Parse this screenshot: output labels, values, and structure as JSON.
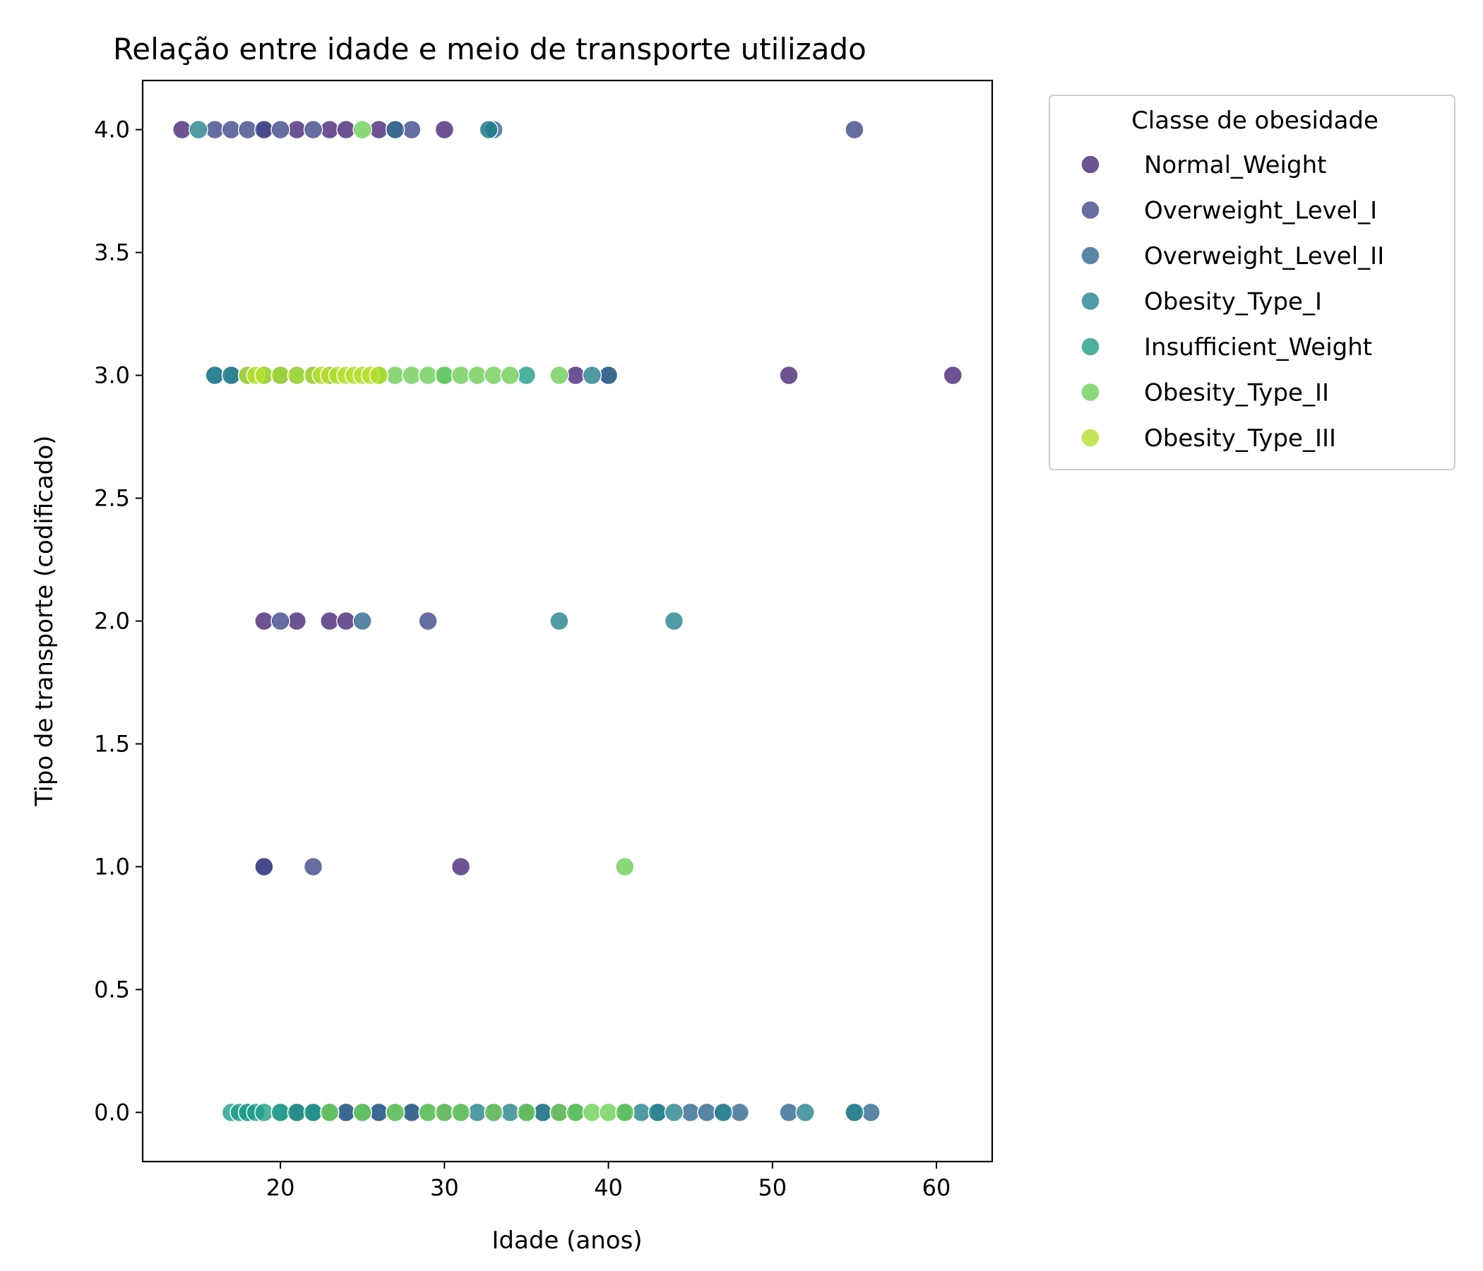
{
  "chart_data": {
    "type": "scatter",
    "title": "Relação entre idade e meio de transporte utilizado",
    "xlabel": "Idade (anos)",
    "ylabel": "Tipo de transporte (codificado)",
    "xlim": [
      11.6,
      63.4
    ],
    "ylim": [
      -0.2,
      4.2
    ],
    "xticks": [
      20,
      30,
      40,
      50,
      60
    ],
    "yticks": [
      0.0,
      0.5,
      1.0,
      1.5,
      2.0,
      2.5,
      3.0,
      3.5,
      4.0
    ],
    "xtick_labels": [
      "20",
      "30",
      "40",
      "50",
      "60"
    ],
    "ytick_labels": [
      "0.0",
      "0.5",
      "1.0",
      "1.5",
      "2.0",
      "2.5",
      "3.0",
      "3.5",
      "4.0"
    ],
    "grid": false,
    "legend": {
      "title": "Classe de obesidade",
      "placement": "outside-upper-right"
    },
    "series": [
      {
        "name": "Normal_Weight",
        "color": "#482878",
        "points": [
          [
            14,
            4
          ],
          [
            19,
            4
          ],
          [
            21,
            4
          ],
          [
            23,
            4
          ],
          [
            24,
            4
          ],
          [
            26,
            4
          ],
          [
            30,
            4
          ],
          [
            19,
            2
          ],
          [
            21,
            2
          ],
          [
            23,
            2
          ],
          [
            24,
            2
          ],
          [
            19,
            1
          ],
          [
            31,
            1
          ],
          [
            51,
            3
          ],
          [
            61,
            3
          ],
          [
            38,
            3
          ],
          [
            21,
            0
          ],
          [
            23,
            0
          ],
          [
            25,
            0
          ],
          [
            22,
            0
          ]
        ]
      },
      {
        "name": "Overweight_Level_I",
        "color": "#3e4989",
        "points": [
          [
            16,
            4
          ],
          [
            17,
            4
          ],
          [
            18,
            4
          ],
          [
            19,
            4
          ],
          [
            20,
            4
          ],
          [
            22,
            4
          ],
          [
            27,
            4
          ],
          [
            28,
            4
          ],
          [
            55,
            4
          ],
          [
            20,
            2
          ],
          [
            29,
            2
          ],
          [
            19,
            1
          ],
          [
            22,
            1
          ],
          [
            21,
            0
          ],
          [
            22,
            0
          ],
          [
            24,
            0
          ],
          [
            26,
            0
          ],
          [
            28,
            0
          ],
          [
            30,
            0
          ],
          [
            33,
            0
          ],
          [
            35,
            0
          ],
          [
            36,
            0
          ],
          [
            37,
            0
          ],
          [
            40,
            3
          ]
        ]
      },
      {
        "name": "Overweight_Level_II",
        "color": "#31688e",
        "points": [
          [
            27,
            4
          ],
          [
            32.8,
            4
          ],
          [
            33,
            4
          ],
          [
            25,
            2
          ],
          [
            40,
            3
          ],
          [
            16,
            3
          ],
          [
            17,
            3
          ],
          [
            22,
            0
          ],
          [
            24,
            0
          ],
          [
            26,
            0
          ],
          [
            28,
            0
          ],
          [
            31,
            0
          ],
          [
            35,
            0
          ],
          [
            38,
            0
          ],
          [
            41,
            0
          ],
          [
            43,
            0
          ],
          [
            45,
            0
          ],
          [
            46,
            0
          ],
          [
            47,
            0
          ],
          [
            48,
            0
          ],
          [
            51,
            0
          ],
          [
            55,
            0
          ],
          [
            56,
            0
          ]
        ]
      },
      {
        "name": "Obesity_Type_I",
        "color": "#26828e",
        "points": [
          [
            15,
            4
          ],
          [
            32.7,
            4
          ],
          [
            37,
            2
          ],
          [
            44,
            2
          ],
          [
            16,
            3
          ],
          [
            17,
            3
          ],
          [
            18,
            3
          ],
          [
            20,
            3
          ],
          [
            22,
            3
          ],
          [
            39,
            3
          ],
          [
            18,
            0
          ],
          [
            20,
            0
          ],
          [
            23,
            0
          ],
          [
            25,
            0
          ],
          [
            27,
            0
          ],
          [
            29,
            0
          ],
          [
            32,
            0
          ],
          [
            34,
            0
          ],
          [
            36,
            0
          ],
          [
            38,
            0
          ],
          [
            41,
            0
          ],
          [
            42,
            0
          ],
          [
            43,
            0
          ],
          [
            44,
            0
          ],
          [
            47,
            0
          ],
          [
            52,
            0
          ],
          [
            55,
            0
          ]
        ]
      },
      {
        "name": "Insufficient_Weight",
        "color": "#1f9e89",
        "points": [
          [
            17,
            0
          ],
          [
            17.5,
            0
          ],
          [
            18,
            0
          ],
          [
            18.5,
            0
          ],
          [
            19,
            0
          ],
          [
            20,
            0
          ],
          [
            21,
            0
          ],
          [
            22,
            0
          ],
          [
            19,
            3
          ],
          [
            20,
            3
          ],
          [
            21,
            3
          ],
          [
            23,
            3
          ],
          [
            26,
            3
          ],
          [
            30,
            3
          ],
          [
            35,
            3
          ]
        ]
      },
      {
        "name": "Obesity_Type_II",
        "color": "#6ece58",
        "points": [
          [
            25,
            4
          ],
          [
            26,
            3
          ],
          [
            27,
            3
          ],
          [
            28,
            3
          ],
          [
            29,
            3
          ],
          [
            30,
            3
          ],
          [
            31,
            3
          ],
          [
            32,
            3
          ],
          [
            33,
            3
          ],
          [
            34,
            3
          ],
          [
            37,
            3
          ],
          [
            41,
            1
          ],
          [
            23,
            0
          ],
          [
            25,
            0
          ],
          [
            27,
            0
          ],
          [
            29,
            0
          ],
          [
            30,
            0
          ],
          [
            31,
            0
          ],
          [
            33,
            0
          ],
          [
            35,
            0
          ],
          [
            37,
            0
          ],
          [
            38,
            0
          ],
          [
            39,
            0
          ],
          [
            40,
            0
          ],
          [
            41,
            0
          ]
        ]
      },
      {
        "name": "Obesity_Type_III",
        "color": "#b5de2b",
        "points": [
          [
            18,
            3
          ],
          [
            18.5,
            3
          ],
          [
            19,
            3
          ],
          [
            20,
            3
          ],
          [
            21,
            3
          ],
          [
            22,
            3
          ],
          [
            22.5,
            3
          ],
          [
            23,
            3
          ],
          [
            23.5,
            3
          ],
          [
            24,
            3
          ],
          [
            24.5,
            3
          ],
          [
            25,
            3
          ],
          [
            25.5,
            3
          ],
          [
            26,
            3
          ]
        ]
      }
    ]
  }
}
